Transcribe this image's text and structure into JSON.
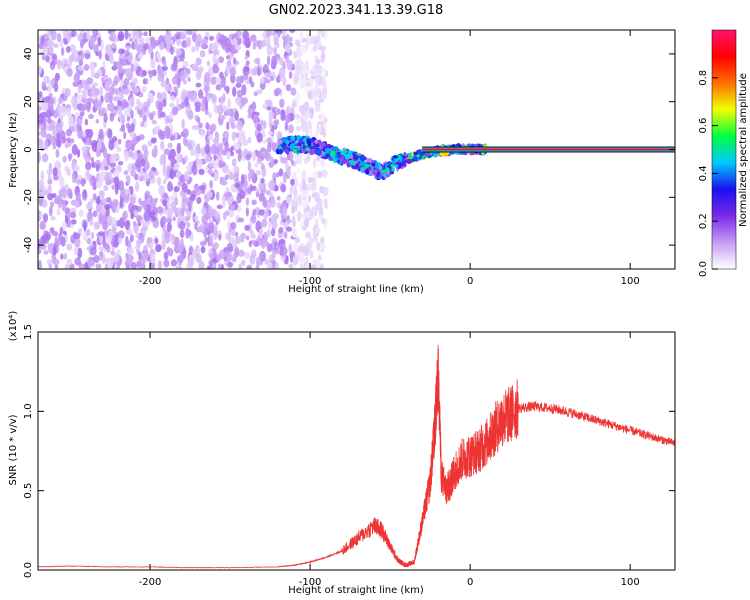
{
  "chart_data": [
    {
      "type": "heatmap",
      "title": "GN02.2023.341.13.39.G18",
      "xlabel": "Height of straight line (km)",
      "ylabel": "Frequency (Hz)",
      "xlim": [
        -270,
        128
      ],
      "ylim": [
        -50,
        50
      ],
      "xticks": [
        -200,
        -100,
        0,
        100
      ],
      "yticks": [
        -40,
        -20,
        0,
        20,
        40
      ],
      "colorbar": {
        "label": "Normalized spectral amplitude",
        "range": [
          0,
          1
        ],
        "ticks": [
          0.0,
          0.2,
          0.4,
          0.6,
          0.8
        ],
        "colors": [
          "#ffffff",
          "#c49cf4",
          "#7a2ae8",
          "#1a10f0",
          "#00c8ff",
          "#00ff40",
          "#f0ff00",
          "#ff7000",
          "#ff0000",
          "#ff1470"
        ]
      },
      "features": [
        {
          "name": "noise",
          "x_range": [
            -270,
            -110
          ],
          "freq_range": [
            -50,
            50
          ],
          "amplitude": 0.1
        },
        {
          "name": "transition track",
          "points": [
            [
              -120,
              2
            ],
            [
              -100,
              2
            ],
            [
              -85,
              -2
            ],
            [
              -70,
              -5
            ],
            [
              -55,
              -10
            ],
            [
              -45,
              -5
            ],
            [
              -35,
              -3
            ],
            [
              -25,
              -1
            ],
            [
              -10,
              0
            ],
            [
              10,
              0
            ]
          ],
          "amplitude": 0.5
        },
        {
          "name": "direct tone",
          "x_range": [
            -30,
            128
          ],
          "frequency": 0,
          "amplitude": 0.95
        }
      ],
      "grid": false
    },
    {
      "type": "line",
      "xlabel": "Height of straight line (km)",
      "ylabel": "SNR (10 * v/v)",
      "y_scale_label": "(x10⁴)",
      "xlim": [
        -270,
        128
      ],
      "ylim": [
        0,
        1.5
      ],
      "xticks": [
        -200,
        -100,
        0,
        100
      ],
      "yticks": [
        "0.0",
        "0.5",
        "1.0",
        "1.5"
      ],
      "color": "#ee3333",
      "series": [
        {
          "x": [
            -270,
            -250,
            -230,
            -200,
            -180,
            -150,
            -120,
            -110,
            -100,
            -90,
            -80,
            -70,
            -60,
            -55,
            -50,
            -45,
            -40,
            -35,
            -30,
            -25,
            -22,
            -20,
            -18,
            -15,
            -12,
            -10,
            -5,
            0,
            5,
            10,
            15,
            20,
            25,
            30,
            40,
            50,
            60,
            70,
            80,
            90,
            100,
            110,
            120,
            128
          ],
          "y": [
            0.02,
            0.025,
            0.02,
            0.02,
            0.015,
            0.015,
            0.02,
            0.03,
            0.05,
            0.08,
            0.12,
            0.2,
            0.28,
            0.25,
            0.15,
            0.06,
            0.03,
            0.05,
            0.3,
            0.55,
            0.9,
            1.25,
            0.6,
            0.5,
            0.55,
            0.62,
            0.7,
            0.72,
            0.75,
            0.8,
            0.88,
            0.95,
            0.98,
            1.02,
            1.03,
            1.02,
            1.0,
            0.97,
            0.94,
            0.91,
            0.88,
            0.85,
            0.82,
            0.8
          ]
        }
      ],
      "grid": false
    }
  ]
}
